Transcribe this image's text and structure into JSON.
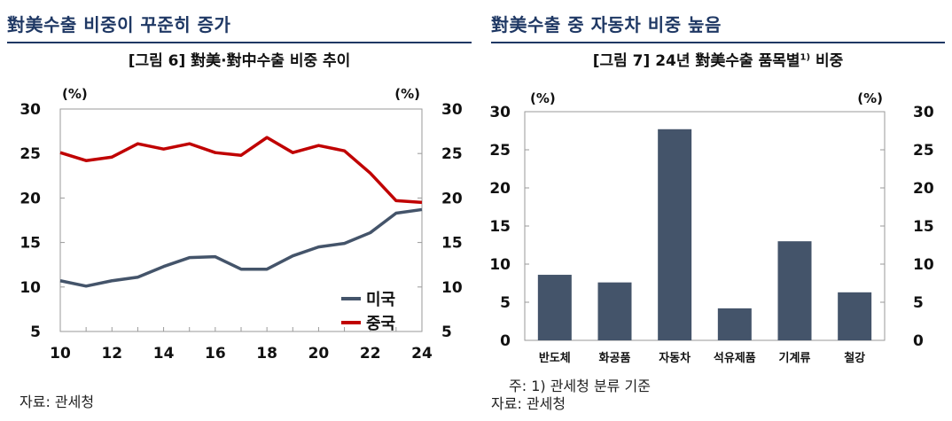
{
  "left": {
    "section_title": "對美수출 비중이 꾸준히 증가",
    "figure_title": "[그림 6] 對美·對中수출 비중 추이",
    "source": "자료: 관세청"
  },
  "right": {
    "section_title": "對美수출 중 자동차 비중 높음",
    "figure_title_main": "[그림 7] 24년 對美수출 품목별",
    "figure_title_sup": "1)",
    "figure_title_end": " 비중",
    "note": "주: 1) 관세청 분류 기준",
    "source": "자료: 관세청"
  },
  "chart_data": [
    {
      "type": "line",
      "unit_left": "(%)",
      "unit_right": "(%)",
      "x": [
        10,
        11,
        12,
        13,
        14,
        15,
        16,
        17,
        18,
        19,
        20,
        21,
        22,
        23,
        24
      ],
      "x_ticks": [
        "10",
        "12",
        "14",
        "16",
        "18",
        "20",
        "22",
        "24"
      ],
      "ylim": [
        5,
        30
      ],
      "y_ticks": [
        "5",
        "10",
        "15",
        "20",
        "25",
        "30"
      ],
      "grid": false,
      "legend_position": "bottom-right",
      "series": [
        {
          "name": "미국",
          "color": "#44546a",
          "values": [
            10.7,
            10.1,
            10.7,
            11.1,
            12.3,
            13.3,
            13.4,
            12.0,
            12.0,
            13.5,
            14.5,
            14.9,
            16.1,
            18.3,
            18.7
          ]
        },
        {
          "name": "중국",
          "color": "#c00000",
          "values": [
            25.1,
            24.2,
            24.6,
            26.1,
            25.5,
            26.1,
            25.1,
            24.8,
            26.8,
            25.1,
            25.9,
            25.3,
            22.8,
            19.7,
            19.5
          ]
        }
      ]
    },
    {
      "type": "bar",
      "unit_left": "(%)",
      "unit_right": "(%)",
      "categories": [
        "반도체",
        "화공품",
        "자동차",
        "석유제품",
        "기계류",
        "철강"
      ],
      "values": [
        8.6,
        7.6,
        27.7,
        4.2,
        13.0,
        6.3
      ],
      "color": "#44546a",
      "ylim": [
        0,
        30
      ],
      "y_ticks": [
        "0",
        "5",
        "10",
        "15",
        "20",
        "25",
        "30"
      ],
      "grid": false
    }
  ]
}
